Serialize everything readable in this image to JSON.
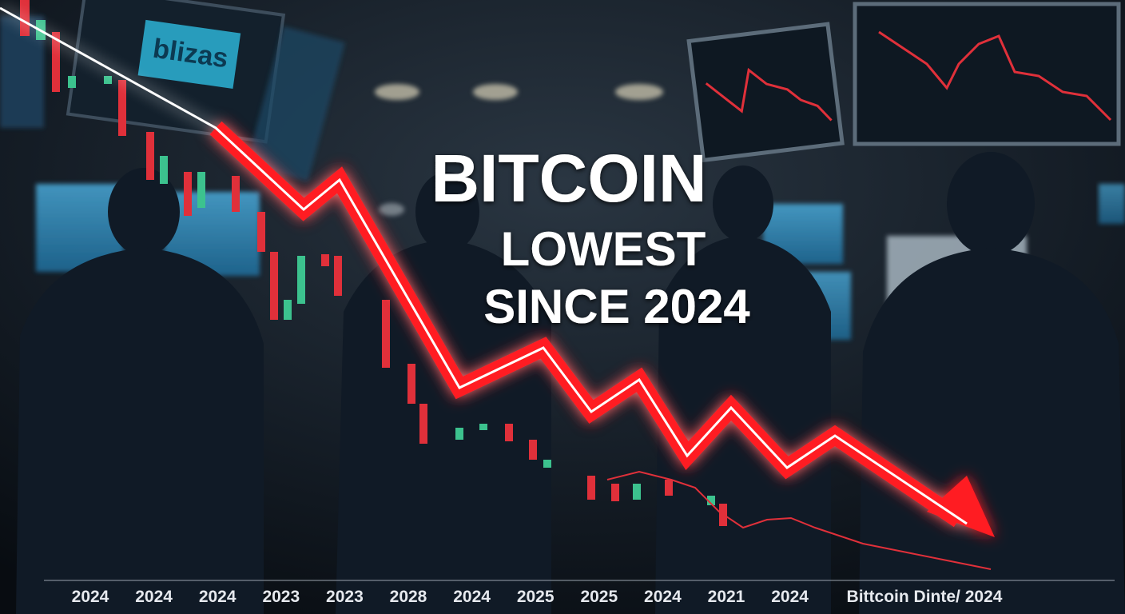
{
  "screen_sign": "blizas",
  "headline": {
    "title": "BITCOIN",
    "line2": "LOWEST",
    "line3": "SINCE 2024"
  },
  "axis_labels": [
    "2024",
    "2024",
    "2024",
    "2023",
    "2023",
    "2028",
    "2024",
    "2025",
    "2025",
    "2024",
    "2021",
    "2024",
    "Bittcoin Dinte/ 2024"
  ]
}
